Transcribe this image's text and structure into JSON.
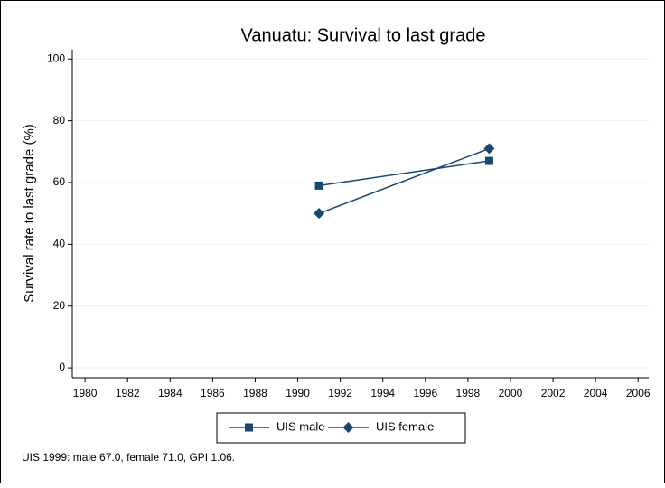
{
  "chart_data": {
    "type": "line",
    "title": "Vanuatu: Survival to last grade",
    "y_label": "Survival rate to last grade (%)",
    "note": "UIS 1999: male 67.0, female 71.0, GPI 1.06.",
    "x": [
      1991,
      1999
    ],
    "series": [
      {
        "name": "UIS male",
        "color": "#1a476f",
        "marker": "square",
        "values": [
          59,
          67
        ]
      },
      {
        "name": "UIS female",
        "color": "#1a476f",
        "marker": "diamond",
        "values": [
          50,
          71
        ]
      }
    ],
    "xlim": [
      1979.4,
      2006.5
    ],
    "xticks": [
      1980,
      1982,
      1984,
      1986,
      1988,
      1990,
      1992,
      1994,
      1996,
      1998,
      2000,
      2002,
      2004,
      2006
    ],
    "ylim": [
      -3.2,
      103
    ],
    "yticks": [
      0,
      20,
      40,
      60,
      80,
      100
    ],
    "grid": true
  }
}
